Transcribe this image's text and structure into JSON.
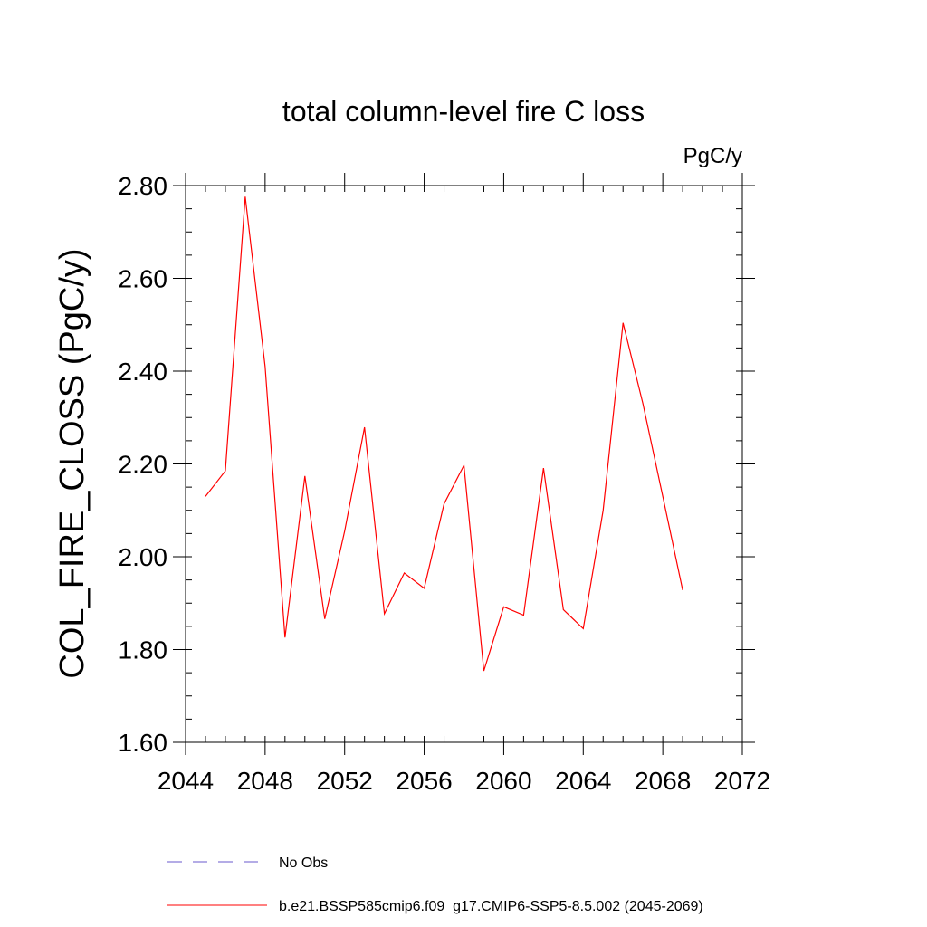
{
  "chart_data": {
    "type": "line",
    "title": "total column-level fire C loss",
    "units_label": "PgC/y",
    "xlabel": "",
    "ylabel": "COL_FIRE_CLOSS  (PgC/y)",
    "xlim": [
      2044,
      2072
    ],
    "ylim": [
      1.6,
      2.8
    ],
    "x_ticks": [
      "2044",
      "2048",
      "2052",
      "2056",
      "2060",
      "2064",
      "2068",
      "2072"
    ],
    "y_ticks": [
      "1.60",
      "1.80",
      "2.00",
      "2.20",
      "2.40",
      "2.60",
      "2.80"
    ],
    "x_minor_step": 1,
    "y_minor_step": 0.05,
    "grid": false,
    "legend_position": "bottom",
    "series": [
      {
        "name": "No Obs",
        "color": "#6a5acd",
        "dash": "dashed",
        "x": [],
        "values": []
      },
      {
        "name": "b.e21.BSSP585cmip6.f09_g17.CMIP6-SSP5-8.5.002 (2045-2069)",
        "color": "#ff0000",
        "dash": "solid",
        "x": [
          2045,
          2046,
          2047,
          2048,
          2049,
          2050,
          2051,
          2052,
          2053,
          2054,
          2055,
          2056,
          2057,
          2058,
          2059,
          2060,
          2061,
          2062,
          2063,
          2064,
          2065,
          2066,
          2067,
          2068,
          2069
        ],
        "values": [
          2.13,
          2.185,
          2.776,
          2.41,
          1.826,
          2.174,
          1.866,
          2.055,
          2.279,
          1.877,
          1.965,
          1.932,
          2.114,
          2.197,
          1.754,
          1.892,
          1.874,
          2.191,
          1.886,
          1.845,
          2.1,
          2.504,
          2.33,
          2.13,
          1.928
        ]
      }
    ]
  }
}
